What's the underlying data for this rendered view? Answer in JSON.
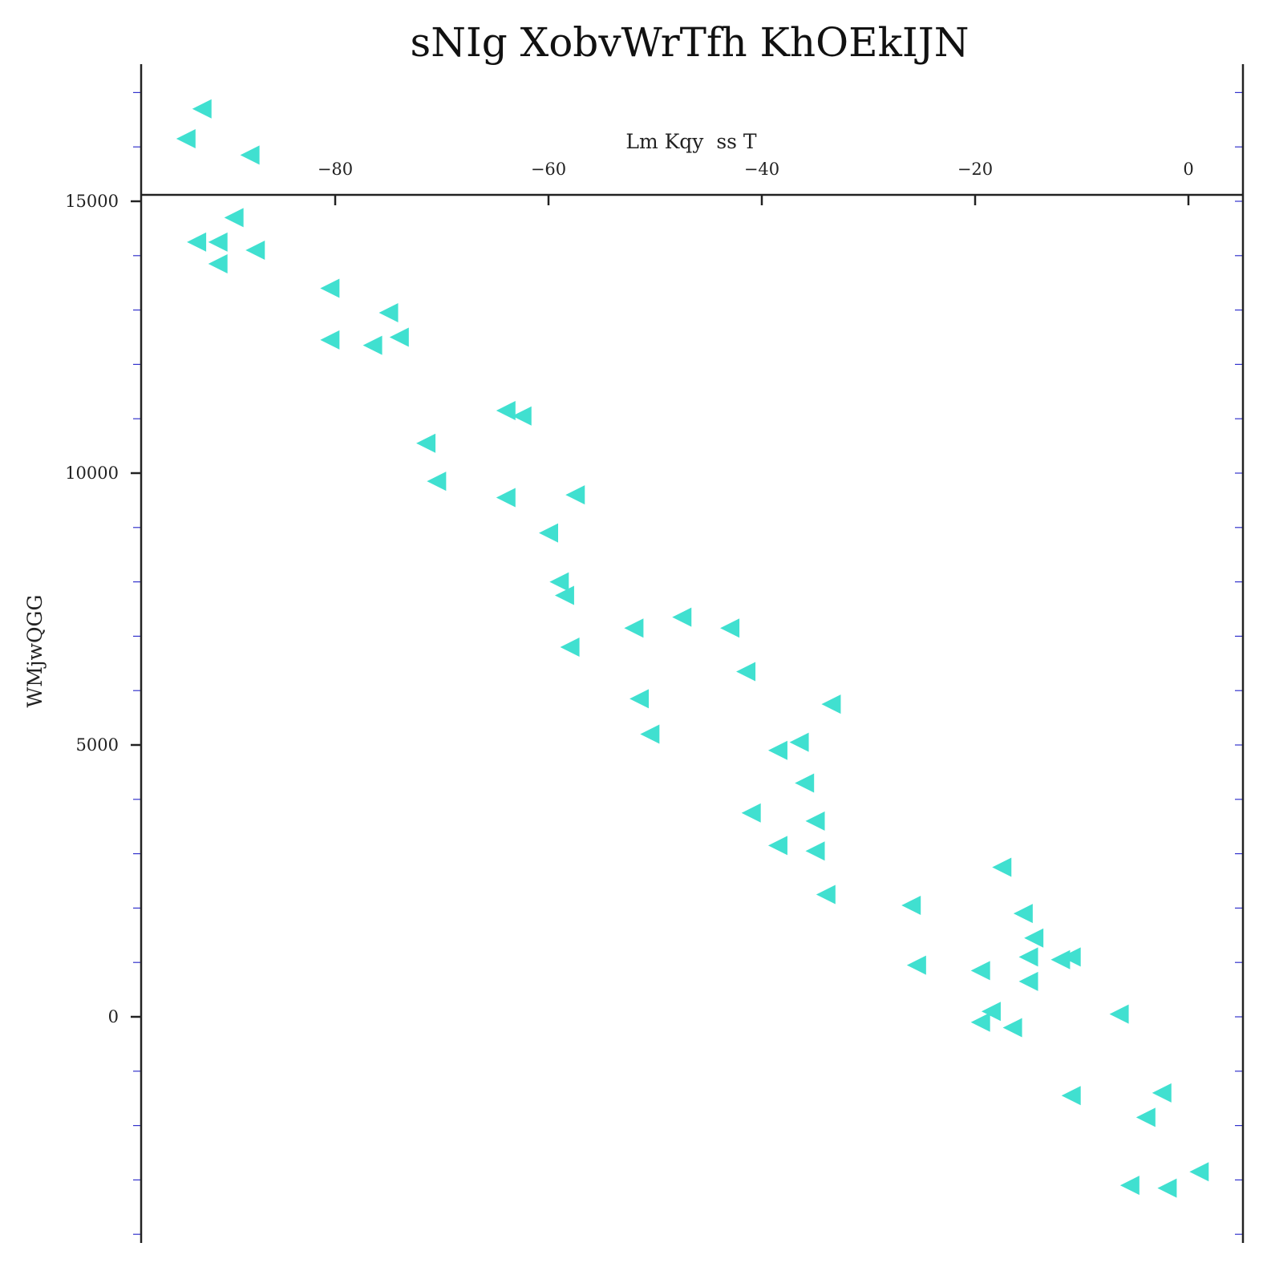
{
  "chart_data": {
    "type": "scatter",
    "title": "sNIg XobvWrTfh KhOEkIJN",
    "xlabel": "Lm Kqy  ss T",
    "ylabel": "WMjwQGG",
    "x_axis_position": "top",
    "xlim": [
      -98,
      5
    ],
    "ylim": [
      -4000,
      17500
    ],
    "xticks": [
      -80,
      -60,
      -40,
      -20,
      0
    ],
    "xtick_labels": [
      "−80",
      "−60",
      "−40",
      "−20",
      "0"
    ],
    "yticks": [
      0,
      5000,
      10000,
      15000
    ],
    "ytick_labels": [
      "0",
      "5000",
      "10000",
      "15000"
    ],
    "grid": false,
    "marker": "triangle-left",
    "colors": {
      "marker": "#40e0d0",
      "axis": "#222222",
      "minor_tick": "#3333cc"
    },
    "series": [
      {
        "points": [
          [
            -92.5,
            16700
          ],
          [
            -94,
            16150
          ],
          [
            -88,
            15850
          ],
          [
            -89.5,
            14700
          ],
          [
            -93,
            14250
          ],
          [
            -91,
            14250
          ],
          [
            -87.5,
            14100
          ],
          [
            -91,
            13850
          ],
          [
            -80.5,
            13400
          ],
          [
            -75,
            12950
          ],
          [
            -80.5,
            12450
          ],
          [
            -74,
            12500
          ],
          [
            -76.5,
            12350
          ],
          [
            -64,
            11150
          ],
          [
            -62.5,
            11050
          ],
          [
            -71.5,
            10550
          ],
          [
            -70.5,
            9850
          ],
          [
            -57.5,
            9600
          ],
          [
            -64,
            9550
          ],
          [
            -60,
            8900
          ],
          [
            -59,
            8000
          ],
          [
            -58.5,
            7750
          ],
          [
            -47.5,
            7350
          ],
          [
            -52,
            7150
          ],
          [
            -43,
            7150
          ],
          [
            -58,
            6800
          ],
          [
            -41.5,
            6350
          ],
          [
            -51.5,
            5850
          ],
          [
            -33.5,
            5750
          ],
          [
            -50.5,
            5200
          ],
          [
            -36.5,
            5050
          ],
          [
            -38.5,
            4900
          ],
          [
            -36,
            4300
          ],
          [
            -41,
            3750
          ],
          [
            -35,
            3600
          ],
          [
            -38.5,
            3150
          ],
          [
            -35,
            3050
          ],
          [
            -34,
            2250
          ],
          [
            -17.5,
            2750
          ],
          [
            -26,
            2050
          ],
          [
            -15.5,
            1900
          ],
          [
            -14.5,
            1450
          ],
          [
            -15,
            1100
          ],
          [
            -11,
            1100
          ],
          [
            -12,
            1050
          ],
          [
            -25.5,
            950
          ],
          [
            -19.5,
            850
          ],
          [
            -15,
            650
          ],
          [
            -6.5,
            50
          ],
          [
            -18.5,
            100
          ],
          [
            -19.5,
            -100
          ],
          [
            -16.5,
            -200
          ],
          [
            -11,
            -1450
          ],
          [
            -2.5,
            -1400
          ],
          [
            -4,
            -1850
          ],
          [
            1,
            -2850
          ],
          [
            -5.5,
            -3100
          ],
          [
            -2,
            -3150
          ]
        ]
      }
    ]
  }
}
